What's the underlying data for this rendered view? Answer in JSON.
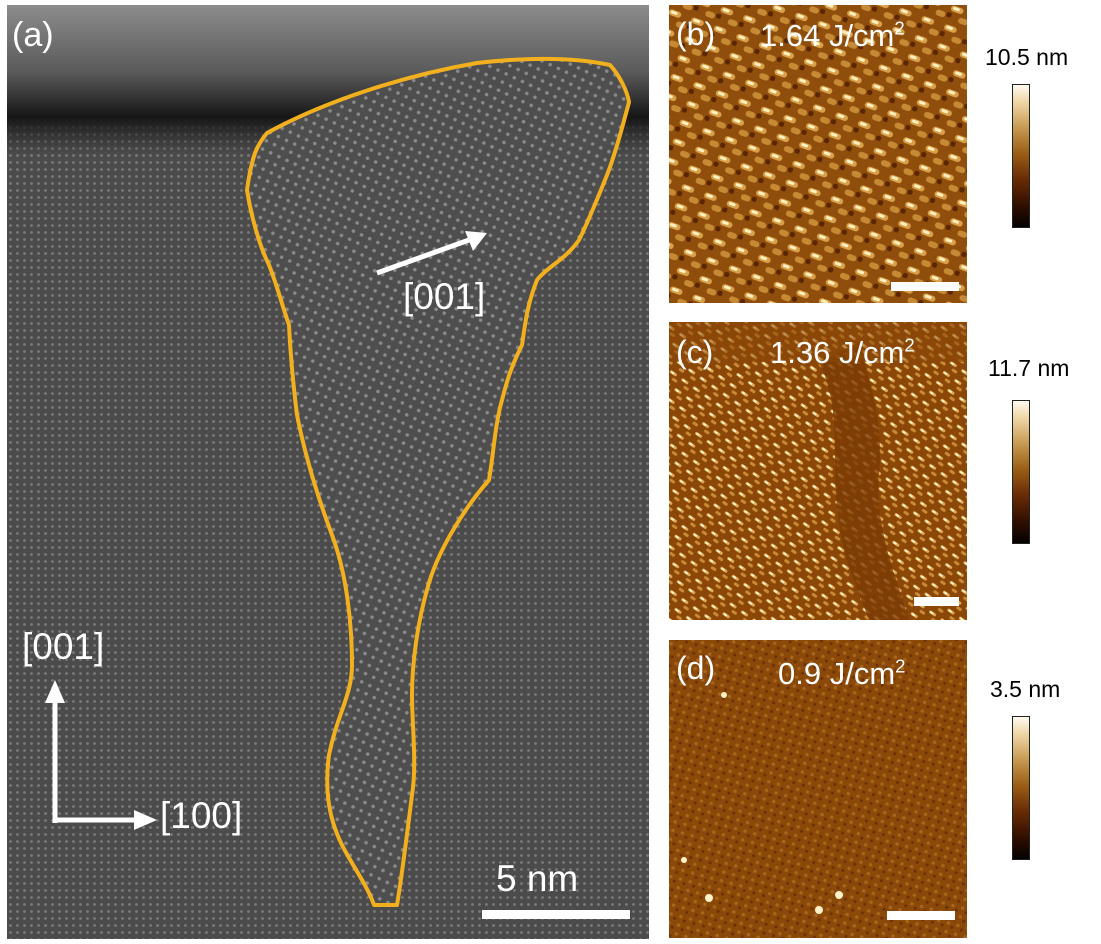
{
  "panel_a": {
    "label": "(a)",
    "inclusion_direction": "[001]",
    "axis_vertical": "[001]",
    "axis_horizontal": "[100]",
    "scale_bar": "5 nm",
    "outline_color": "#f2b01e"
  },
  "panels_afm": [
    {
      "label": "(b)",
      "fluence_value": "1.64 J/cm",
      "fluence_sup": "2",
      "colorbar_max": "10.5 nm"
    },
    {
      "label": "(c)",
      "fluence_value": "1.36 J/cm",
      "fluence_sup": "2",
      "colorbar_max": "11.7 nm"
    },
    {
      "label": "(d)",
      "fluence_value": "0.9 J/cm",
      "fluence_sup": "2",
      "colorbar_max": "3.5 nm"
    }
  ],
  "colors": {
    "afm_base": "#8f4e0c",
    "afm_high": "#fff2c8",
    "afm_low": "#3a1400"
  }
}
